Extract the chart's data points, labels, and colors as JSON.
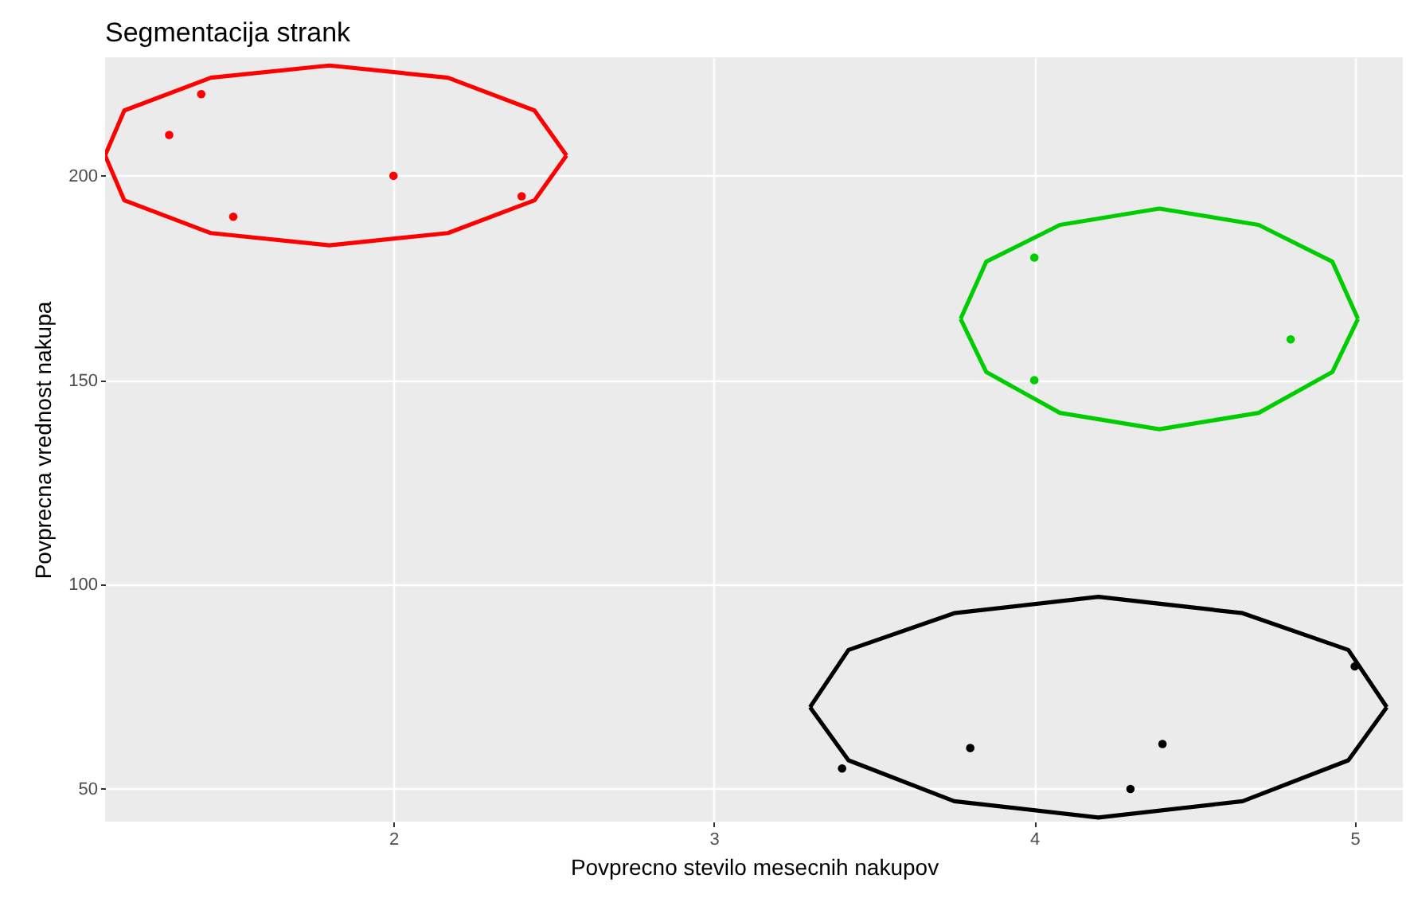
{
  "chart_data": {
    "type": "scatter",
    "title": "Segmentacija strank",
    "xlabel": "Povprecno stevilo mesecnih nakupov",
    "ylabel": "Povprecna vrednost nakupa",
    "xlim": [
      1.1,
      5.15
    ],
    "ylim": [
      42,
      229
    ],
    "xticks": [
      2,
      3,
      4,
      5
    ],
    "yticks": [
      50,
      100,
      150,
      200
    ],
    "grid": true,
    "marker": "circle",
    "series": [
      {
        "color": "#ff0000",
        "x": [
          1.3,
          1.4,
          1.5,
          2,
          2.4
        ],
        "values": [
          210,
          220,
          190,
          200,
          195
        ]
      },
      {
        "color": "#00cd00",
        "x": [
          4,
          4,
          4.8
        ],
        "values": [
          180,
          150,
          160
        ]
      },
      {
        "color": "#000000",
        "x": [
          3.4,
          3.8,
          4.3,
          4.4,
          5
        ],
        "values": [
          55,
          60,
          50,
          61,
          80
        ]
      },
      {
        "type": "line",
        "marker": "none",
        "color": "#ff0000",
        "x": [
          1.1,
          1.16,
          1.43,
          1.8,
          2.17,
          2.44,
          2.54
        ],
        "values": [
          205,
          216,
          224,
          227,
          224,
          216,
          205
        ]
      },
      {
        "type": "line",
        "marker": "none",
        "color": "#ff0000",
        "x": [
          1.1,
          1.16,
          1.43,
          1.8,
          2.17,
          2.44,
          2.54
        ],
        "values": [
          205,
          194,
          186,
          183,
          186,
          194,
          205
        ]
      },
      {
        "type": "line",
        "marker": "none",
        "color": "#00cd00",
        "x": [
          3.77,
          3.85,
          4.08,
          4.39,
          4.7,
          4.93,
          5.01
        ],
        "values": [
          165,
          179,
          188,
          192,
          188,
          179,
          165
        ]
      },
      {
        "type": "line",
        "marker": "none",
        "color": "#00cd00",
        "x": [
          3.77,
          3.85,
          4.08,
          4.39,
          4.7,
          4.93,
          5.01
        ],
        "values": [
          165,
          152,
          142,
          138,
          142,
          152,
          165
        ]
      },
      {
        "type": "line",
        "marker": "none",
        "color": "#000000",
        "x": [
          3.3,
          3.42,
          3.75,
          4.2,
          4.65,
          4.98,
          5.1
        ],
        "values": [
          70,
          84,
          93,
          97,
          93,
          84,
          70
        ]
      },
      {
        "type": "line",
        "marker": "none",
        "color": "#000000",
        "x": [
          3.3,
          3.42,
          3.75,
          4.2,
          4.65,
          4.98,
          5.1
        ],
        "values": [
          70,
          57,
          47,
          43,
          47,
          57,
          70
        ]
      }
    ]
  }
}
